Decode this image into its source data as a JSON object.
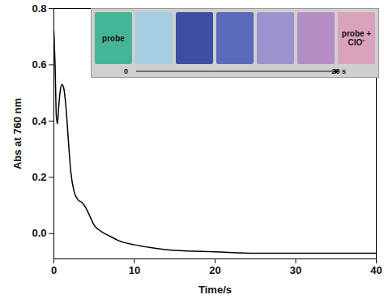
{
  "chart_data": {
    "type": "line",
    "xlabel": "Time/s",
    "ylabel": "Abs at 760 nm",
    "x": [
      0,
      0.15,
      0.3,
      0.45,
      0.6,
      0.8,
      1.0,
      1.2,
      1.5,
      1.8,
      2.1,
      2.5,
      3.0,
      3.5,
      4.0,
      4.5,
      5.0,
      5.5,
      6,
      7,
      8,
      10,
      12,
      15,
      20,
      25,
      30,
      35,
      40
    ],
    "values": [
      0.72,
      0.6,
      0.42,
      0.39,
      0.45,
      0.51,
      0.53,
      0.52,
      0.45,
      0.33,
      0.22,
      0.15,
      0.12,
      0.11,
      0.09,
      0.06,
      0.03,
      0.015,
      0.005,
      -0.01,
      -0.025,
      -0.04,
      -0.05,
      -0.06,
      -0.065,
      -0.07,
      -0.07,
      -0.07,
      -0.07
    ],
    "color": "#000000",
    "xlim": [
      0,
      40
    ],
    "ylim": [
      -0.09,
      0.8
    ],
    "xticks": [
      0,
      10,
      20,
      30,
      40
    ],
    "yticks": [
      {
        "value": 0,
        "label": "0.0"
      },
      0.2,
      0.4,
      0.6,
      0.8
    ],
    "inset": {
      "first_label": "probe",
      "last_label": "probe + ClO⁻",
      "start": "0",
      "end": "20 s"
    }
  }
}
